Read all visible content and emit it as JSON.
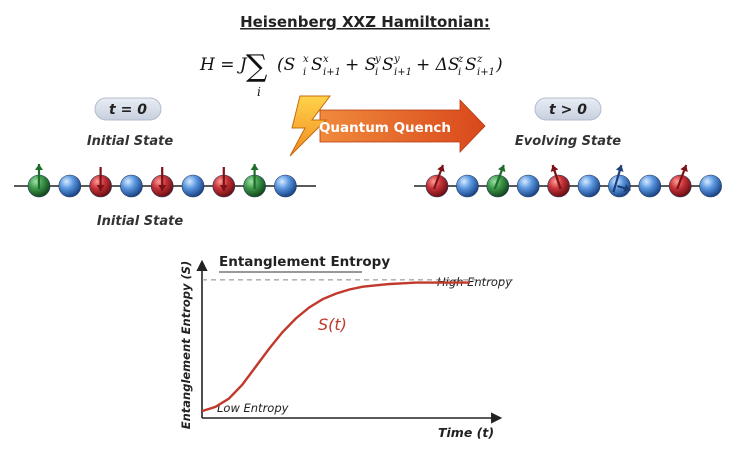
{
  "header": {
    "title": "Heisenberg XXZ Hamiltonian:",
    "equation": {
      "lhs": "H = J",
      "sum_symbol": "∑",
      "sum_index": "i",
      "body": "(S",
      "term1": "S",
      "term2": "+ S",
      "term3": "S",
      "term4": "+ ΔS",
      "term5": "S",
      "close": ")",
      "sup_x": "x",
      "sup_y": "y",
      "sup_z": "z",
      "sub_i": "i",
      "sub_i1": "i+1"
    }
  },
  "quench": {
    "label": "Quantum Quench",
    "arrow_color": "#e55a1a",
    "bolt_color": "#f5a623"
  },
  "left_panel": {
    "badge": "t = 0",
    "state_label": "Initial State",
    "state_label_below": "Initial State",
    "spins": [
      {
        "color": "green",
        "arrow": "up"
      },
      {
        "color": "blue",
        "arrow": "none"
      },
      {
        "color": "red",
        "arrow": "down"
      },
      {
        "color": "blue",
        "arrow": "none"
      },
      {
        "color": "red",
        "arrow": "down"
      },
      {
        "color": "blue",
        "arrow": "none"
      },
      {
        "color": "red",
        "arrow": "down"
      },
      {
        "color": "green",
        "arrow": "up"
      },
      {
        "color": "blue",
        "arrow": "none"
      }
    ]
  },
  "right_panel": {
    "badge": "t > 0",
    "state_label": "Evolving State",
    "spins": [
      {
        "color": "red",
        "arrow": "tilt-right"
      },
      {
        "color": "blue",
        "arrow": "none"
      },
      {
        "color": "green",
        "arrow": "tilt-right"
      },
      {
        "color": "blue",
        "arrow": "none"
      },
      {
        "color": "red",
        "arrow": "tilt-left"
      },
      {
        "color": "blue",
        "arrow": "none"
      },
      {
        "color": "blue",
        "arrow": "tilt-cross"
      },
      {
        "color": "blue",
        "arrow": "none"
      },
      {
        "color": "red",
        "arrow": "tilt-right"
      },
      {
        "color": "blue",
        "arrow": "none"
      }
    ]
  },
  "sphere_colors": {
    "green": "#2f8a3c",
    "blue": "#3f7fd0",
    "red": "#c0272d"
  },
  "chart_data": {
    "type": "line",
    "title": "Entanglement Entropy",
    "xlabel": "Time (t)",
    "ylabel": "Entanglement Entropy (S)",
    "series": [
      {
        "name": "S(t)",
        "color": "#c0392b",
        "x": [
          0,
          0.5,
          1,
          1.5,
          2,
          2.5,
          3,
          3.5,
          4,
          4.5,
          5,
          5.5,
          6,
          6.5,
          7,
          7.5,
          8,
          8.5,
          9,
          9.5,
          10
        ],
        "y": [
          0.05,
          0.08,
          0.14,
          0.24,
          0.37,
          0.5,
          0.62,
          0.72,
          0.8,
          0.86,
          0.9,
          0.93,
          0.95,
          0.96,
          0.97,
          0.975,
          0.98,
          0.98,
          0.98,
          0.98,
          0.98
        ]
      }
    ],
    "annotations": {
      "high": "High Entropy",
      "low": "Low Entropy",
      "curve_label": "S(t)"
    },
    "reference_line": {
      "y": 1.0,
      "style": "dashed"
    },
    "xlim": [
      0,
      10
    ],
    "ylim": [
      0,
      1.1
    ],
    "grid": false
  }
}
